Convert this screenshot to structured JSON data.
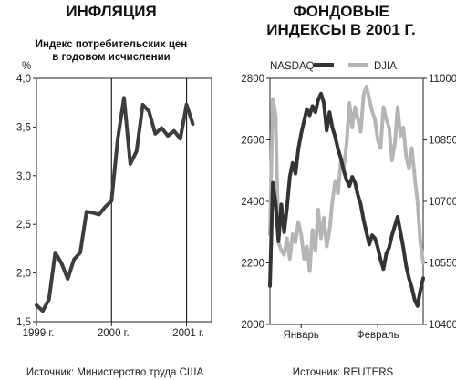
{
  "chart_data": [
    {
      "type": "line",
      "title": "ИНФЛЯЦИЯ",
      "subtitle": [
        "Индекс потребительских цен",
        "в годовом исчислении"
      ],
      "ylabel": "%",
      "ylim": [
        1.5,
        4.0
      ],
      "yticks": [
        "1,5",
        "2,0",
        "2,5",
        "3,0",
        "3,5",
        "4,0"
      ],
      "yticks_values": [
        1.5,
        2.0,
        2.5,
        3.0,
        3.5,
        4.0
      ],
      "xlim": [
        0,
        28
      ],
      "xticks": [
        "1999 г.",
        "2000 г.",
        "2001 г."
      ],
      "xticks_positions": [
        0,
        12,
        24
      ],
      "grid": false,
      "series": [
        {
          "color": "#3d3d3d",
          "x": [
            0,
            1,
            2,
            3,
            4,
            5,
            6,
            7,
            8,
            9,
            10,
            11,
            12,
            13,
            14,
            15,
            16,
            17,
            18,
            19,
            20,
            21,
            22,
            23,
            24,
            25
          ],
          "values": [
            1.67,
            1.61,
            1.73,
            2.21,
            2.1,
            1.94,
            2.14,
            2.21,
            2.63,
            2.62,
            2.6,
            2.68,
            2.74,
            3.38,
            3.8,
            3.12,
            3.25,
            3.73,
            3.66,
            3.43,
            3.49,
            3.41,
            3.46,
            3.38,
            3.73,
            3.53
          ]
        }
      ],
      "source": "Источник: Министерство труда США"
    },
    {
      "type": "line",
      "title": [
        "ФОНДОВЫЕ",
        "ИНДЕКСЫ В 2001 Г."
      ],
      "xlim": [
        0,
        54
      ],
      "xticks": [
        "Январь",
        "Февраль"
      ],
      "xticks_positions": [
        11,
        38
      ],
      "y_left": {
        "ylim": [
          2000,
          2800
        ],
        "yticks": [
          "2000",
          "2200",
          "2400",
          "2600",
          "2800"
        ],
        "yticks_values": [
          2000,
          2200,
          2400,
          2600,
          2800
        ]
      },
      "y_right": {
        "ylim": [
          10400,
          11000
        ],
        "yticks": [
          "10400",
          "10550",
          "10700",
          "10850",
          "11000"
        ],
        "yticks_values": [
          10400,
          10550,
          10700,
          10850,
          11000
        ]
      },
      "grid": false,
      "legend_position": "top",
      "series": [
        {
          "name": "NASDAQ",
          "axis": "left",
          "color": "#333333",
          "x": [
            0,
            1,
            2,
            3,
            4,
            5,
            6,
            7,
            8,
            9,
            10,
            11,
            12,
            13,
            14,
            15,
            16,
            17,
            18,
            19,
            20,
            21,
            22,
            23,
            24,
            25,
            26,
            27,
            28,
            29,
            30,
            31,
            32,
            33,
            34,
            35,
            36,
            37,
            38,
            39,
            40,
            41,
            42,
            43,
            44,
            45,
            46,
            47,
            48,
            49,
            50,
            51,
            52,
            53,
            54
          ],
          "values": [
            2125,
            2460,
            2395,
            2270,
            2390,
            2300,
            2380,
            2480,
            2525,
            2490,
            2570,
            2620,
            2660,
            2700,
            2680,
            2710,
            2690,
            2730,
            2750,
            2720,
            2630,
            2690,
            2640,
            2610,
            2570,
            2540,
            2500,
            2470,
            2450,
            2480,
            2460,
            2420,
            2390,
            2340,
            2300,
            2260,
            2290,
            2280,
            2250,
            2210,
            2180,
            2230,
            2250,
            2290,
            2320,
            2350,
            2300,
            2250,
            2190,
            2150,
            2120,
            2080,
            2060,
            2110,
            2150
          ]
        },
        {
          "name": "DJIA",
          "axis": "right",
          "color": "#b5b5b5",
          "x": [
            0,
            1,
            2,
            3,
            4,
            5,
            6,
            7,
            8,
            9,
            10,
            11,
            12,
            13,
            14,
            15,
            16,
            17,
            18,
            19,
            20,
            21,
            22,
            23,
            24,
            25,
            26,
            27,
            28,
            29,
            30,
            31,
            32,
            33,
            34,
            35,
            36,
            37,
            38,
            39,
            40,
            41,
            42,
            43,
            44,
            45,
            46,
            47,
            48,
            49,
            50,
            51,
            52,
            53,
            54
          ],
          "values": [
            10620,
            10950,
            10910,
            10600,
            10580,
            10570,
            10610,
            10560,
            10620,
            10600,
            10650,
            10620,
            10560,
            10590,
            10530,
            10630,
            10580,
            10680,
            10610,
            10660,
            10590,
            10630,
            10700,
            10750,
            10720,
            10800,
            10780,
            10840,
            10940,
            10880,
            10930,
            10900,
            10870,
            10960,
            10980,
            10950,
            10920,
            10900,
            10850,
            10830,
            10930,
            10900,
            10880,
            10800,
            10840,
            10930,
            10860,
            10880,
            10810,
            10780,
            10830,
            10760,
            10700,
            10600,
            10550
          ]
        }
      ],
      "source": "Источник: REUTERS"
    }
  ]
}
